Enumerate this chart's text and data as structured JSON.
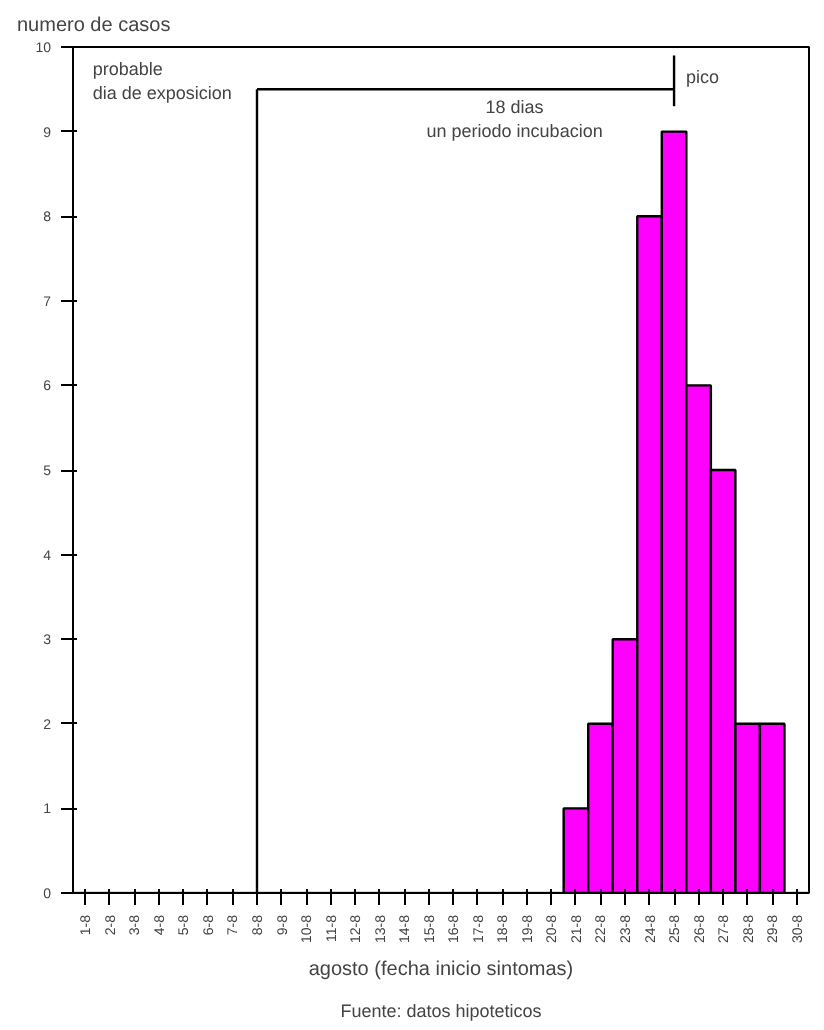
{
  "chart_data": {
    "type": "bar",
    "ylabel": "numero de casos",
    "xlabel": "agosto (fecha inicio sintomas)",
    "categories": [
      "1-8",
      "2-8",
      "3-8",
      "4-8",
      "5-8",
      "6-8",
      "7-8",
      "8-8",
      "9-8",
      "10-8",
      "11-8",
      "12-8",
      "13-8",
      "14-8",
      "15-8",
      "16-8",
      "17-8",
      "18-8",
      "19-8",
      "20-8",
      "21-8",
      "22-8",
      "23-8",
      "24-8",
      "25-8",
      "26-8",
      "27-8",
      "28-8",
      "29-8",
      "30-8"
    ],
    "values": [
      0,
      0,
      0,
      0,
      0,
      0,
      0,
      0,
      0,
      0,
      0,
      0,
      0,
      0,
      0,
      0,
      0,
      0,
      0,
      0,
      1,
      2,
      3,
      8,
      9,
      6,
      5,
      2,
      2,
      0
    ],
    "color": "#ff00ff",
    "ylim": [
      0,
      10
    ],
    "yticks": [
      0,
      1,
      2,
      3,
      4,
      5,
      6,
      7,
      8,
      9,
      10
    ],
    "grid": false,
    "ref_lines": [
      {
        "axis": "x",
        "value": "8-8",
        "label": "probable\ndia de exposicion",
        "color": "#000000"
      },
      {
        "axis": "y",
        "value": 9.5,
        "label": "18 dias\nun periodo incubacion",
        "color": "#000000"
      },
      {
        "axis": "x",
        "value": "25-8",
        "label": "pico",
        "color": "#000000"
      }
    ],
    "annotations": [
      "Fuente: datos hipoteticos"
    ]
  }
}
